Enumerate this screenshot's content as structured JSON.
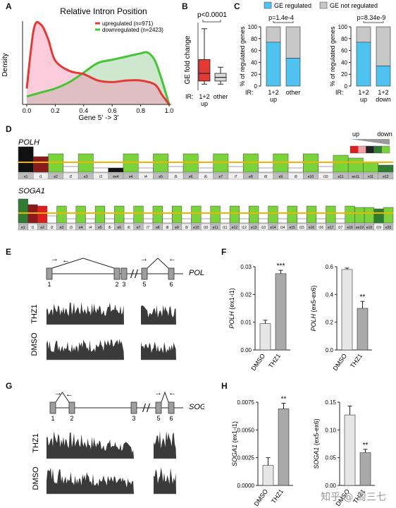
{
  "panel_labels": {
    "a": "A",
    "b": "B",
    "c": "C",
    "d": "D",
    "e": "E",
    "f": "F",
    "g": "G",
    "h": "H"
  },
  "panelA": {
    "title": "Relative Intron Position",
    "ylabel": "Density",
    "xlabel": "Gene 5' -> 3'",
    "xticks": [
      "0.0",
      "0.2",
      "0.4",
      "0.6",
      "0.8",
      "1.0"
    ],
    "legend": [
      {
        "name": "upregulated (n=971)",
        "color": "#e53935"
      },
      {
        "name": "downregulated (n=2423)",
        "color": "#43c536"
      }
    ]
  },
  "panelB": {
    "ylabel": "GE fold change",
    "pvalue": "p<0.0001",
    "ir_label": "IR:",
    "cat1": [
      "1+2",
      "up"
    ],
    "cat2": [
      "other"
    ]
  },
  "panelC": {
    "legend": {
      "regulated": "GE regulated",
      "not_regulated": "GE not regulated"
    },
    "ylabel": "% of regulated genes",
    "yticks": [
      "0",
      "20",
      "40",
      "60",
      "80",
      "100"
    ],
    "left": {
      "pvalue": "p=1.4e-4",
      "ir": "IR:",
      "cats": [
        [
          "1+2",
          "up"
        ],
        [
          "other",
          ""
        ]
      ]
    },
    "right": {
      "pvalue": "p=8.34e-9",
      "ir": "IR:",
      "cats": [
        [
          "1+2",
          "up"
        ],
        [
          "1+2",
          "down"
        ]
      ]
    }
  },
  "panelD": {
    "gene1": "POLH",
    "gene2": "SOGA1",
    "legend_up": "up",
    "legend_down": "down",
    "polh_segments": [
      "e1",
      "i1",
      "e2",
      "i2",
      "e3",
      "i3",
      "ee4",
      "e4",
      "i4",
      "e5",
      "i5",
      "e6",
      "i6",
      "e7",
      "i7",
      "e8",
      "i8",
      "e9",
      "i9",
      "e10",
      "i10",
      "e11",
      "ee11",
      "e11",
      "e12"
    ],
    "soga_segments": [
      "e1",
      "i1",
      "e2",
      "i2",
      "e3",
      "i3",
      "e4",
      "i4",
      "e5",
      "i5",
      "e6",
      "i6",
      "e7",
      "i7",
      "e8",
      "i8",
      "e9",
      "i9",
      "e10",
      "i10",
      "e11",
      "i11",
      "e12",
      "i12",
      "e13",
      "i13",
      "e14",
      "i14",
      "e15",
      "i15",
      "e16",
      "i16",
      "e17",
      "i17",
      "e18",
      "ee19",
      "e19",
      "i19",
      "e20"
    ]
  },
  "panelE": {
    "gene": "POLH",
    "exon_numbers": [
      "1",
      "2",
      "3",
      "5",
      "6"
    ],
    "track1": "THZ1",
    "track2": "DMSO"
  },
  "panelF": {
    "left": {
      "ylabel_gene": "POLH",
      "ylabel_suffix": " (ex1-i1)",
      "yticks": [
        "0.00",
        "0.01",
        "0.02",
        "0.03"
      ],
      "cats": [
        "DMSO",
        "THZ1"
      ],
      "sig": "***"
    },
    "right": {
      "ylabel_gene": "POLH",
      "ylabel_suffix": " (ex5-ex6)",
      "yticks": [
        "0.0",
        "0.2",
        "0.4",
        "0.6"
      ],
      "cats": [
        "DMSO",
        "THZ1"
      ],
      "sig": "**"
    }
  },
  "panelG": {
    "gene": "SOGA1",
    "exon_numbers": [
      "1",
      "2",
      "3",
      "5",
      "6"
    ],
    "track1": "THZ1",
    "track2": "DMSO"
  },
  "panelH": {
    "left": {
      "ylabel_gene": "SOGA1",
      "ylabel_suffix": " (ex1-i1)",
      "yticks": [
        "0.0000",
        "0.0025",
        "0.0050",
        "0.0075"
      ],
      "cats": [
        "DMSO",
        "THZ1"
      ],
      "sig": "**"
    },
    "right": {
      "ylabel_gene": "SOGA1",
      "ylabel_suffix": " (ex5-ex6)",
      "yticks": [
        "0.00",
        "0.05",
        "0.10",
        "0.15"
      ],
      "cats": [
        "DMSO",
        "THZ1"
      ],
      "sig": "**"
    }
  },
  "watermark": "知乎 @ 周三七",
  "chart_data": [
    {
      "type": "area",
      "title": "Relative Intron Position",
      "xlabel": "Gene 5' -> 3'",
      "ylabel": "Density",
      "ylim": [
        0,
        null
      ],
      "xlim": [
        0,
        1
      ],
      "series": [
        {
          "name": "upregulated (n=971)",
          "x": [
            0.0,
            0.05,
            0.1,
            0.15,
            0.2,
            0.3,
            0.4,
            0.5,
            0.6,
            0.7,
            0.8,
            0.9,
            0.95,
            1.0
          ],
          "y": [
            0.2,
            0.95,
            1.0,
            0.82,
            0.55,
            0.42,
            0.38,
            0.3,
            0.28,
            0.3,
            0.3,
            0.25,
            0.12,
            0.0
          ]
        },
        {
          "name": "downregulated (n=2423)",
          "x": [
            0.0,
            0.1,
            0.2,
            0.3,
            0.4,
            0.5,
            0.6,
            0.7,
            0.8,
            0.85,
            0.9,
            0.95,
            1.0
          ],
          "y": [
            0.1,
            0.15,
            0.2,
            0.28,
            0.4,
            0.52,
            0.56,
            0.6,
            0.64,
            0.65,
            0.55,
            0.3,
            0.0
          ]
        }
      ]
    },
    {
      "type": "box",
      "ylabel": "GE fold change",
      "categories": [
        "1+2 up",
        "other"
      ],
      "boxes": [
        {
          "min": 1.5,
          "q1": 1.6,
          "median": 1.85,
          "q3": 2.3,
          "max": 3.3
        },
        {
          "min": 1.5,
          "q1": 1.6,
          "median": 1.72,
          "q3": 1.85,
          "max": 2.05
        }
      ]
    },
    {
      "type": "bar",
      "ylabel": "% of regulated genes",
      "categories": [
        "1+2 up",
        "other"
      ],
      "ylim": [
        0,
        100
      ],
      "series": [
        {
          "name": "GE regulated",
          "values": [
            74,
            47
          ]
        },
        {
          "name": "GE not regulated",
          "values": [
            26,
            53
          ]
        }
      ]
    },
    {
      "type": "bar",
      "ylabel": "% of regulated genes",
      "categories": [
        "1+2 up",
        "1+2 down"
      ],
      "ylim": [
        0,
        100
      ],
      "series": [
        {
          "name": "GE regulated",
          "values": [
            74,
            34
          ]
        },
        {
          "name": "GE not regulated",
          "values": [
            26,
            66
          ]
        }
      ]
    },
    {
      "type": "bar",
      "ylabel": "POLH (ex1-i1)",
      "categories": [
        "DMSO",
        "THZ1"
      ],
      "values": [
        0.0095,
        0.0275
      ],
      "errors": [
        0.0012,
        0.0012
      ],
      "ylim": [
        0,
        0.03
      ]
    },
    {
      "type": "bar",
      "ylabel": "POLH (ex5-ex6)",
      "categories": [
        "DMSO",
        "THZ1"
      ],
      "values": [
        0.58,
        0.3
      ],
      "errors": [
        0.01,
        0.05
      ],
      "ylim": [
        0,
        0.6
      ]
    },
    {
      "type": "bar",
      "ylabel": "SOGA1 (ex1-i1)",
      "categories": [
        "DMSO",
        "THZ1"
      ],
      "values": [
        0.0018,
        0.0069
      ],
      "errors": [
        0.0007,
        0.0005
      ],
      "ylim": [
        0,
        0.0075
      ]
    },
    {
      "type": "bar",
      "ylabel": "SOGA1 (ex5-ex6)",
      "categories": [
        "DMSO",
        "THZ1"
      ],
      "values": [
        0.127,
        0.059
      ],
      "errors": [
        0.016,
        0.006
      ],
      "ylim": [
        0,
        0.15
      ]
    }
  ]
}
